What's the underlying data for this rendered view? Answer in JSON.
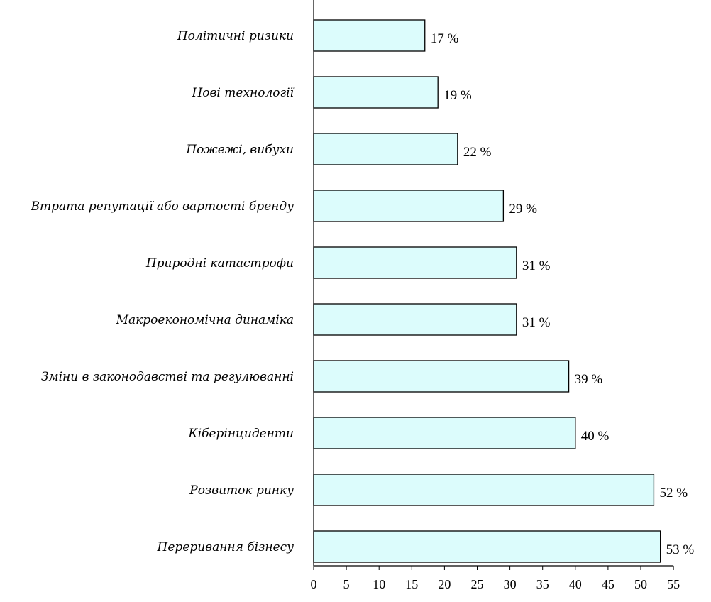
{
  "colors": {
    "bar_fill": "#dcfcfc",
    "bar_stroke": "#000000",
    "axis": "#000000"
  },
  "chart_data": {
    "type": "bar",
    "orientation": "horizontal",
    "title": "",
    "xlabel": "",
    "ylabel": "",
    "categories": [
      "Політичні ризики",
      "Нові технології",
      "Пожежі, вибухи",
      "Втрата репутації або вартості бренду",
      "Природні катастрофи",
      "Макроекономічна динаміка",
      "Зміни в законодавстві та регулюванні",
      "Кіберінциденти",
      "Розвиток ринку",
      "Переривання бізнесу"
    ],
    "values": [
      17,
      19,
      22,
      29,
      31,
      31,
      39,
      40,
      52,
      53
    ],
    "value_labels": [
      "17 %",
      "19 %",
      "22 %",
      "29 %",
      "31 %",
      "31 %",
      "39 %",
      "40 %",
      "52 %",
      "53 %"
    ],
    "xlim": [
      0,
      55
    ],
    "xticks": [
      0,
      5,
      10,
      15,
      20,
      25,
      30,
      35,
      40,
      45,
      50,
      55
    ],
    "grid": false,
    "legend": "none"
  }
}
